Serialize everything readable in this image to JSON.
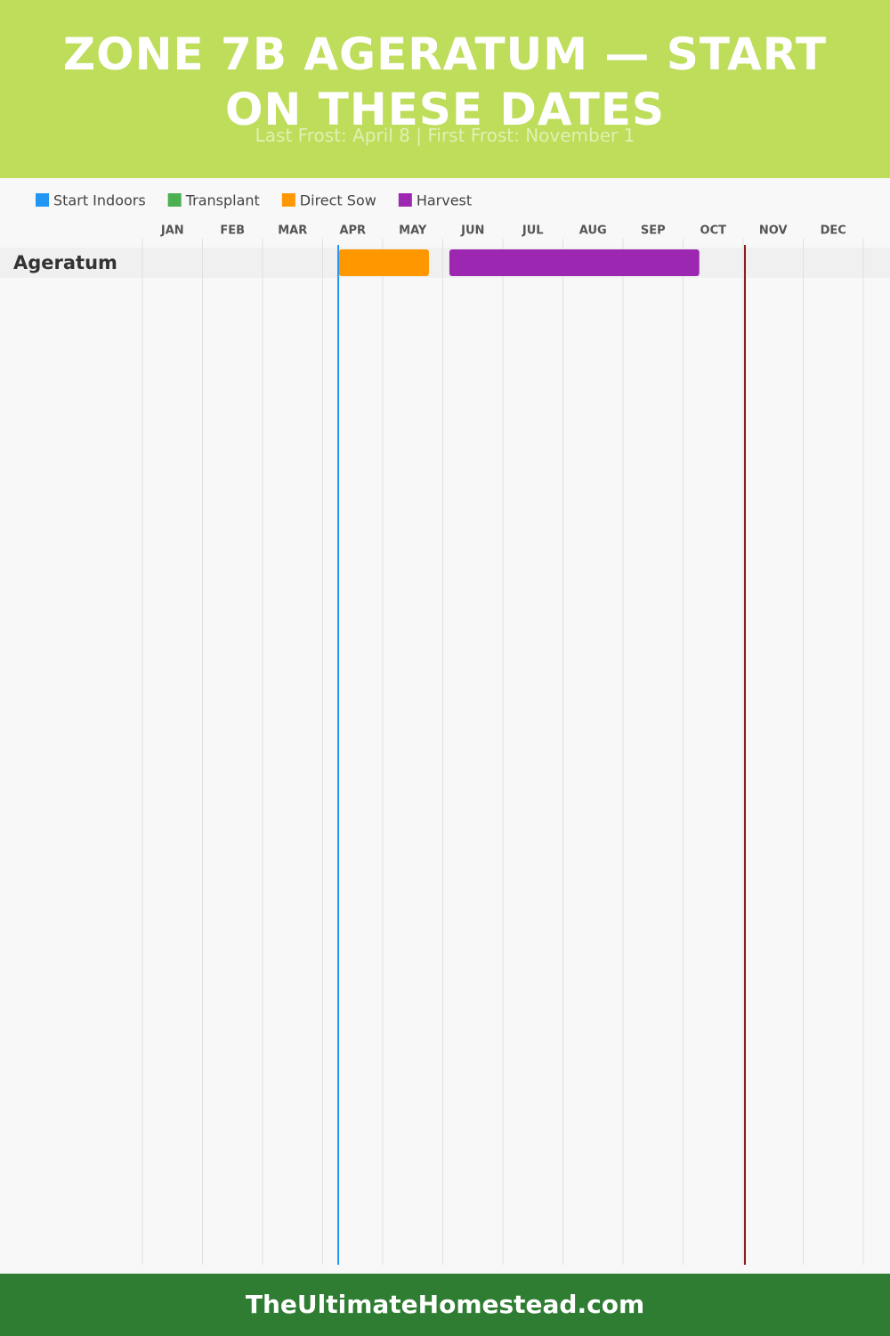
{
  "chart_data": {
    "type": "gantt",
    "title": "ZONE 7B AGERATUM — START ON THESE DATES",
    "subtitle": "Last Frost: April 8 | First Frost: November 1",
    "x_categories": [
      "JAN",
      "FEB",
      "MAR",
      "APR",
      "MAY",
      "JUN",
      "JUL",
      "AUG",
      "SEP",
      "OCT",
      "NOV",
      "DEC"
    ],
    "xlim": [
      0,
      12
    ],
    "categories": [
      "Ageratum"
    ],
    "series": [
      {
        "name": "Start Indoors",
        "color": "#2196f3",
        "values": [
          null
        ]
      },
      {
        "name": "Transplant",
        "color": "#4caf50",
        "values": [
          null
        ]
      },
      {
        "name": "Direct Sow",
        "color": "#ff9800",
        "values": [
          [
            3.27,
            4.77
          ]
        ]
      },
      {
        "name": "Harvest",
        "color": "#9c27b0",
        "values": [
          [
            5.11,
            9.27
          ]
        ]
      }
    ],
    "last_frost": 3.26,
    "last_frost_color": "#2196f3",
    "first_frost": 10.03,
    "first_frost_color": "#8b1a1a",
    "grid": true,
    "footer": "TheUltimateHomestead.com"
  }
}
